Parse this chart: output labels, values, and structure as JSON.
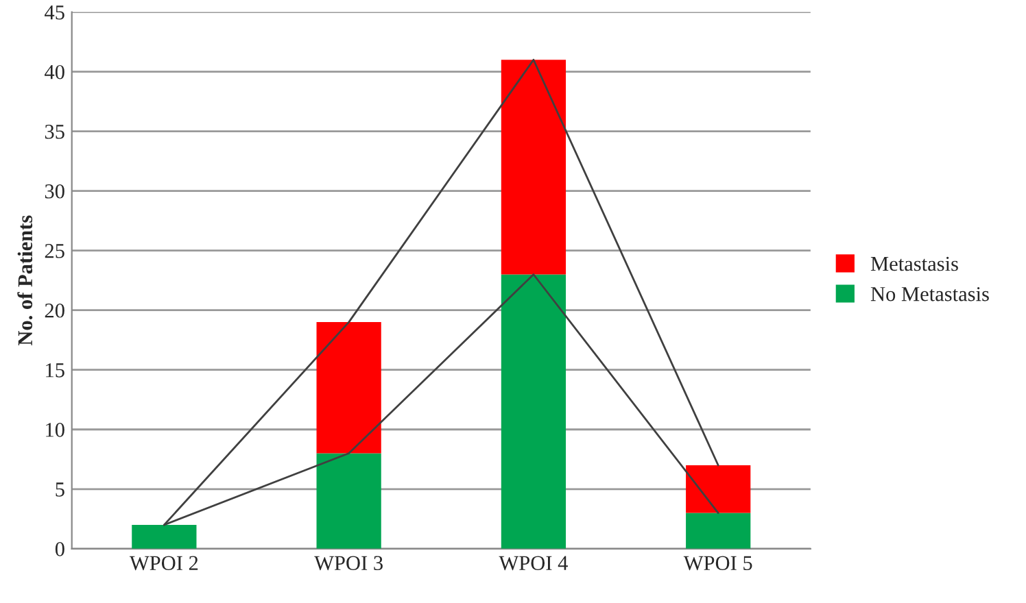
{
  "chart_data": {
    "type": "bar",
    "stacked": true,
    "ylabel": "No. of Patients",
    "categories": [
      "WPOI 2",
      "WPOI 3",
      "WPOI 4",
      "WPOI 5"
    ],
    "series": [
      {
        "name": "No Metastasis",
        "color": "#00a651",
        "values": [
          2,
          8,
          23,
          3
        ]
      },
      {
        "name": "Metastasis",
        "color": "#ff0000",
        "values": [
          null,
          11,
          18,
          4
        ]
      },
      {
        "type": "line",
        "color": "#404040",
        "values": [
          2,
          8,
          23,
          3
        ]
      },
      {
        "type": "line",
        "color": "#404040",
        "values": [
          2,
          19,
          41,
          7
        ]
      }
    ],
    "ylim": [
      0,
      45
    ],
    "yticks": [
      0,
      5,
      10,
      15,
      20,
      25,
      30,
      35,
      40,
      45
    ],
    "grid": "y",
    "legend": "right"
  }
}
